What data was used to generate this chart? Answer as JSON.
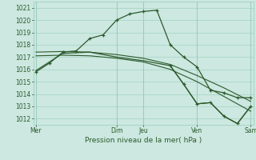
{
  "title": "",
  "xlabel": "Pression niveau de la mer( hPa )",
  "bg_color": "#cce8e0",
  "grid_color": "#99ccbb",
  "line_color": "#2d5a2d",
  "ylim": [
    1011.5,
    1021.5
  ],
  "yticks": [
    1012,
    1013,
    1014,
    1015,
    1016,
    1017,
    1018,
    1019,
    1020,
    1021
  ],
  "xlim": [
    -0.1,
    8.1
  ],
  "xtick_pos": [
    0,
    3,
    4,
    6,
    8
  ],
  "xtick_labels": [
    "Mer",
    "Dim",
    "Jeu",
    "Ven",
    "Sam"
  ],
  "vline_pos": [
    0,
    3,
    4,
    6,
    8
  ],
  "series1_x": [
    0,
    0.5,
    1.0,
    1.5,
    2.0,
    2.5,
    3.0,
    3.5,
    4.0,
    4.5,
    5.0,
    5.5,
    6.0,
    6.5,
    7.0,
    7.5,
    8.0
  ],
  "series1_y": [
    1015.8,
    1016.5,
    1017.4,
    1017.5,
    1018.5,
    1018.8,
    1020.0,
    1020.5,
    1020.7,
    1020.8,
    1018.0,
    1017.0,
    1016.2,
    1014.3,
    1014.1,
    1013.7,
    1013.7
  ],
  "series2_x": [
    0,
    1.0,
    2.0,
    3.0,
    4.0,
    5.0,
    6.0,
    7.0,
    8.0
  ],
  "series2_y": [
    1017.4,
    1017.45,
    1017.4,
    1017.2,
    1016.9,
    1016.4,
    1015.5,
    1014.5,
    1013.4
  ],
  "series3_x": [
    0,
    1.0,
    2.0,
    3.0,
    4.0,
    5.0,
    6.0,
    7.0,
    8.0
  ],
  "series3_y": [
    1017.1,
    1017.15,
    1017.1,
    1016.9,
    1016.6,
    1016.0,
    1015.0,
    1013.8,
    1012.6
  ],
  "series4_x": [
    0,
    1.0,
    2.0,
    3.0,
    4.0,
    5.0,
    5.5,
    6.0,
    6.5,
    7.0,
    7.5,
    8.0
  ],
  "series4_y": [
    1015.9,
    1017.3,
    1017.4,
    1017.0,
    1016.7,
    1016.3,
    1014.8,
    1013.2,
    1013.3,
    1012.2,
    1011.6,
    1013.0
  ]
}
